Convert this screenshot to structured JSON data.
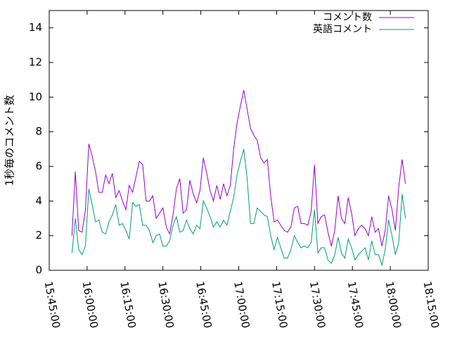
{
  "chart_data": {
    "type": "line",
    "y_label": "1秒毎のコメント数",
    "x": [
      "15:54:00",
      "15:55:20",
      "15:56:40",
      "15:58:00",
      "15:59:20",
      "16:00:40",
      "16:02:00",
      "16:03:20",
      "16:04:40",
      "16:06:00",
      "16:07:20",
      "16:08:40",
      "16:10:00",
      "16:11:20",
      "16:12:40",
      "16:14:00",
      "16:15:20",
      "16:16:40",
      "16:18:00",
      "16:19:20",
      "16:20:40",
      "16:22:00",
      "16:23:20",
      "16:24:40",
      "16:26:00",
      "16:27:20",
      "16:28:40",
      "16:30:00",
      "16:31:20",
      "16:32:40",
      "16:34:00",
      "16:35:20",
      "16:36:40",
      "16:38:00",
      "16:39:20",
      "16:40:40",
      "16:42:00",
      "16:43:20",
      "16:44:40",
      "16:46:00",
      "16:47:20",
      "16:48:40",
      "16:50:00",
      "16:51:20",
      "16:52:40",
      "16:54:00",
      "16:55:20",
      "16:56:40",
      "16:58:00",
      "16:59:20",
      "17:00:40",
      "17:02:00",
      "17:03:20",
      "17:04:40",
      "17:06:00",
      "17:07:20",
      "17:08:40",
      "17:10:00",
      "17:11:20",
      "17:12:40",
      "17:14:00",
      "17:15:20",
      "17:16:40",
      "17:18:00",
      "17:19:20",
      "17:20:40",
      "17:22:00",
      "17:23:20",
      "17:24:40",
      "17:26:00",
      "17:27:20",
      "17:28:40",
      "17:30:00",
      "17:31:20",
      "17:32:40",
      "17:34:00",
      "17:35:20",
      "17:36:40",
      "17:38:00",
      "17:39:20",
      "17:40:40",
      "17:42:00",
      "17:43:20",
      "17:44:40",
      "17:46:00",
      "17:47:20",
      "17:48:40",
      "17:50:00",
      "17:51:20",
      "17:52:40",
      "17:54:00",
      "17:55:20",
      "17:56:40",
      "17:58:00",
      "17:59:20",
      "18:00:40",
      "18:02:00",
      "18:03:20",
      "18:04:40",
      "18:06:00"
    ],
    "series": [
      {
        "name": "コメント数",
        "color": "#9400d3",
        "values": [
          2.0,
          5.7,
          2.3,
          2.2,
          3.5,
          7.3,
          6.6,
          5.7,
          4.5,
          4.5,
          5.5,
          5.0,
          5.6,
          4.2,
          4.6,
          4.0,
          3.5,
          4.9,
          4.5,
          5.4,
          6.3,
          6.1,
          4.0,
          4.0,
          4.3,
          3.0,
          3.3,
          3.6,
          2.5,
          2.1,
          3.2,
          4.7,
          5.3,
          3.3,
          3.5,
          5.2,
          4.4,
          3.9,
          4.6,
          6.5,
          5.6,
          4.6,
          4.0,
          4.9,
          4.1,
          5.0,
          4.3,
          4.9,
          7.0,
          8.5,
          9.5,
          10.4,
          9.3,
          8.2,
          7.8,
          7.5,
          6.5,
          6.2,
          6.4,
          4.3,
          2.8,
          2.9,
          2.6,
          2.3,
          2.2,
          2.5,
          3.6,
          3.7,
          2.7,
          2.7,
          2.6,
          3.4,
          6.1,
          2.7,
          3.1,
          3.2,
          2.2,
          1.4,
          2.3,
          4.3,
          3.0,
          2.7,
          4.2,
          3.3,
          2.0,
          2.4,
          2.6,
          2.4,
          2.0,
          3.1,
          2.2,
          2.4,
          1.4,
          2.3,
          4.3,
          3.5,
          2.3,
          4.8,
          6.4,
          5.0
        ]
      },
      {
        "name": "英語コメント",
        "color": "#009e73",
        "values": [
          1.0,
          3.0,
          1.2,
          0.9,
          1.4,
          4.7,
          3.8,
          2.8,
          2.9,
          2.2,
          2.1,
          2.8,
          3.2,
          3.8,
          2.6,
          2.7,
          2.3,
          1.8,
          3.9,
          3.7,
          3.8,
          2.6,
          2.6,
          2.3,
          1.6,
          2.0,
          2.1,
          1.4,
          1.4,
          1.7,
          2.6,
          3.1,
          2.2,
          2.3,
          2.9,
          2.4,
          2.1,
          2.6,
          2.4,
          4.0,
          3.6,
          3.1,
          2.5,
          2.8,
          2.5,
          2.9,
          2.6,
          3.4,
          4.2,
          5.5,
          6.3,
          7.0,
          5.3,
          2.7,
          2.7,
          3.6,
          3.4,
          3.2,
          3.1,
          2.0,
          1.2,
          1.9,
          1.3,
          0.7,
          0.7,
          1.2,
          2.0,
          1.6,
          1.3,
          1.4,
          1.3,
          1.6,
          3.5,
          1.0,
          1.3,
          1.3,
          0.6,
          0.4,
          0.9,
          1.9,
          1.0,
          0.7,
          1.8,
          1.3,
          0.6,
          0.9,
          1.1,
          1.3,
          0.6,
          1.7,
          0.9,
          0.9,
          0.3,
          1.2,
          2.9,
          2.0,
          0.9,
          1.6,
          4.4,
          3.0
        ]
      }
    ],
    "xlim": [
      "15:45:00",
      "18:15:00"
    ],
    "xticks": [
      "15:45:00",
      "16:00:00",
      "16:15:00",
      "16:30:00",
      "16:45:00",
      "17:00:00",
      "17:15:00",
      "17:30:00",
      "17:45:00",
      "18:00:00",
      "18:15:00"
    ],
    "ylim": [
      0,
      15
    ],
    "yticks": [
      0,
      2,
      4,
      6,
      8,
      10,
      12,
      14
    ],
    "legend": "top-right"
  }
}
